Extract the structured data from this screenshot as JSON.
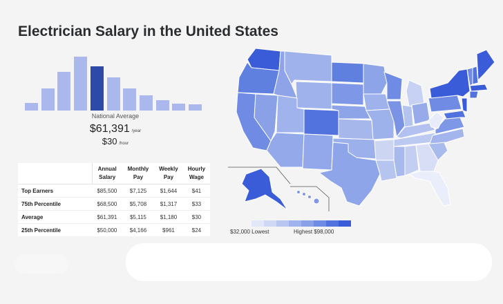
{
  "page": {
    "title": "Electrician Salary in the United States"
  },
  "histogram": {
    "levels": [
      0.14,
      0.4,
      0.7,
      0.98,
      0.8,
      0.6,
      0.4,
      0.27,
      0.19,
      0.13,
      0.11
    ],
    "highlight_index": 4,
    "colors": {
      "bar": "#aab8ee",
      "highlight": "#2d4aa6"
    }
  },
  "national": {
    "label": "National Average",
    "annual": "$61,391",
    "annual_unit": "/year",
    "hourly": "$30",
    "hourly_unit": "/hour"
  },
  "pay_table": {
    "headers": [
      [
        "Annual",
        "Salary"
      ],
      [
        "Monthly",
        "Pay"
      ],
      [
        "Weekly",
        "Pay"
      ],
      [
        "Hourly",
        "Wage"
      ]
    ],
    "rows": [
      {
        "label": "Top Earners",
        "values": [
          "$85,500",
          "$7,125",
          "$1,644",
          "$41"
        ]
      },
      {
        "label": "75th Percentile",
        "values": [
          "$68,500",
          "$5,708",
          "$1,317",
          "$33"
        ]
      },
      {
        "label": "Average",
        "values": [
          "$61,391",
          "$5,115",
          "$1,180",
          "$30"
        ]
      },
      {
        "label": "25th Percentile",
        "values": [
          "$50,000",
          "$4,166",
          "$961",
          "$24"
        ]
      }
    ]
  },
  "legend": {
    "low": "$32,000 Lowest",
    "high": "Highest $98,000",
    "colors": [
      "#e3e8f8",
      "#cfd8f4",
      "#b8c6f0",
      "#a0b3ec",
      "#8aa1e8",
      "#6f8be3",
      "#5273de",
      "#3a5cd8"
    ]
  },
  "map_colors": {
    "stroke": "#ffffff",
    "light": "#d3dbf4",
    "mid": "#a7b8ed",
    "dark": "#3a5cd8"
  }
}
